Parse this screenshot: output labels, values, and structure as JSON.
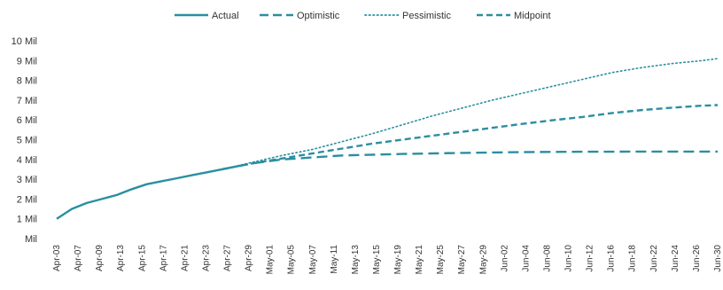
{
  "chart_data": {
    "type": "line",
    "title": "",
    "xlabel": "",
    "ylabel": "",
    "legend_position": "top",
    "grid": false,
    "color": "#2a8fa0",
    "y_ticks": [
      "Mil",
      "1 Mil",
      "2 Mil",
      "3 Mil",
      "4 Mil",
      "5 Mil",
      "6 Mil",
      "7 Mil",
      "8 Mil",
      "9 Mil",
      "10 Mil"
    ],
    "ylim": [
      0,
      10
    ],
    "x_tick_labels": [
      "Apr-03",
      "Apr-07",
      "Apr-09",
      "Apr-13",
      "Apr-15",
      "Apr-17",
      "Apr-21",
      "Apr-23",
      "Apr-27",
      "Apr-29",
      "May-01",
      "May-05",
      "May-07",
      "May-11",
      "May-13",
      "May-15",
      "May-19",
      "May-21",
      "May-25",
      "May-27",
      "May-29",
      "Jun-02",
      "Jun-04",
      "Jun-08",
      "Jun-10",
      "Jun-12",
      "Jun-16",
      "Jun-18",
      "Jun-22",
      "Jun-24",
      "Jun-26",
      "Jun-30"
    ],
    "x_range": [
      "Apr-03",
      "Jun-30"
    ],
    "series": [
      {
        "name": "Actual",
        "style": "solid",
        "points": [
          [
            "Apr-03",
            1.0
          ],
          [
            "Apr-05",
            1.5
          ],
          [
            "Apr-07",
            1.8
          ],
          [
            "Apr-09",
            2.0
          ],
          [
            "Apr-11",
            2.2
          ],
          [
            "Apr-13",
            2.5
          ],
          [
            "Apr-15",
            2.75
          ],
          [
            "Apr-17",
            2.9
          ],
          [
            "Apr-19",
            3.05
          ],
          [
            "Apr-21",
            3.2
          ],
          [
            "Apr-23",
            3.35
          ],
          [
            "Apr-25",
            3.5
          ]
        ]
      },
      {
        "name": "Optimistic",
        "style": "longdash",
        "points": [
          [
            "Apr-25",
            3.5
          ],
          [
            "Apr-29",
            3.8
          ],
          [
            "May-03",
            4.0
          ],
          [
            "May-11",
            4.2
          ],
          [
            "May-19",
            4.28
          ],
          [
            "May-27",
            4.33
          ],
          [
            "Jun-04",
            4.37
          ],
          [
            "Jun-12",
            4.39
          ],
          [
            "Jun-22",
            4.4
          ],
          [
            "Jun-30",
            4.4
          ]
        ]
      },
      {
        "name": "Pessimistic",
        "style": "dotted",
        "points": [
          [
            "Apr-25",
            3.5
          ],
          [
            "Apr-29",
            3.85
          ],
          [
            "May-03",
            4.2
          ],
          [
            "May-07",
            4.5
          ],
          [
            "May-11",
            4.9
          ],
          [
            "May-15",
            5.3
          ],
          [
            "May-19",
            5.75
          ],
          [
            "May-23",
            6.2
          ],
          [
            "May-27",
            6.6
          ],
          [
            "May-31",
            7.0
          ],
          [
            "Jun-04",
            7.35
          ],
          [
            "Jun-08",
            7.7
          ],
          [
            "Jun-12",
            8.05
          ],
          [
            "Jun-16",
            8.4
          ],
          [
            "Jun-20",
            8.65
          ],
          [
            "Jun-24",
            8.85
          ],
          [
            "Jun-28",
            9.0
          ],
          [
            "Jun-30",
            9.1
          ]
        ]
      },
      {
        "name": "Midpoint",
        "style": "dashed",
        "points": [
          [
            "Apr-25",
            3.5
          ],
          [
            "Apr-29",
            3.8
          ],
          [
            "May-03",
            4.05
          ],
          [
            "May-07",
            4.3
          ],
          [
            "May-11",
            4.55
          ],
          [
            "May-15",
            4.8
          ],
          [
            "May-19",
            5.0
          ],
          [
            "May-23",
            5.2
          ],
          [
            "May-27",
            5.4
          ],
          [
            "May-31",
            5.6
          ],
          [
            "Jun-04",
            5.8
          ],
          [
            "Jun-08",
            5.98
          ],
          [
            "Jun-12",
            6.15
          ],
          [
            "Jun-16",
            6.35
          ],
          [
            "Jun-20",
            6.5
          ],
          [
            "Jun-24",
            6.62
          ],
          [
            "Jun-28",
            6.72
          ],
          [
            "Jun-30",
            6.75
          ]
        ]
      }
    ]
  }
}
